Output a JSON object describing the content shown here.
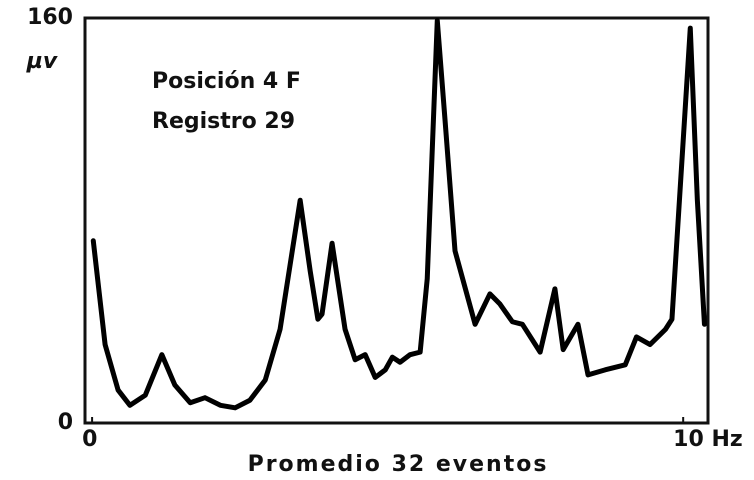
{
  "chart_data": {
    "type": "line",
    "y_label": "µv",
    "x_label": "Promedio 32 eventos",
    "annotations": [
      "Posición 4 F",
      "Registro 29"
    ],
    "xlim": [
      -0.12,
      10.42
    ],
    "ylim": [
      0,
      160
    ],
    "xticks": [
      0,
      {
        "value": 10,
        "label": "10 Hz"
      }
    ],
    "yticks": [
      0,
      160
    ],
    "series": [
      {
        "color": "#000000",
        "x": [
          0.02,
          0.22,
          0.44,
          0.64,
          0.9,
          1.18,
          1.4,
          1.66,
          1.91,
          2.17,
          2.42,
          2.67,
          2.93,
          3.18,
          3.52,
          3.69,
          3.82,
          3.89,
          4.06,
          4.28,
          4.45,
          4.62,
          4.79,
          4.96,
          5.08,
          5.21,
          5.38,
          5.55,
          5.67,
          5.84,
          5.97,
          6.14,
          6.48,
          6.73,
          6.9,
          7.11,
          7.28,
          7.58,
          7.83,
          7.97,
          8.22,
          8.39,
          8.68,
          9.02,
          9.21,
          9.44,
          9.7,
          9.81,
          10.12,
          10.24,
          10.36
        ],
        "values": [
          72,
          31,
          13,
          7,
          11,
          27,
          15,
          8,
          10,
          7,
          6,
          9,
          17,
          37,
          88,
          60,
          41,
          43,
          71,
          37,
          25,
          27,
          18,
          21,
          26,
          24,
          27,
          28,
          57,
          159,
          120,
          68,
          39,
          51,
          47,
          40,
          39,
          28,
          53,
          29,
          39,
          19,
          21,
          23,
          34,
          31,
          37,
          41,
          156,
          88,
          39
        ]
      }
    ]
  }
}
